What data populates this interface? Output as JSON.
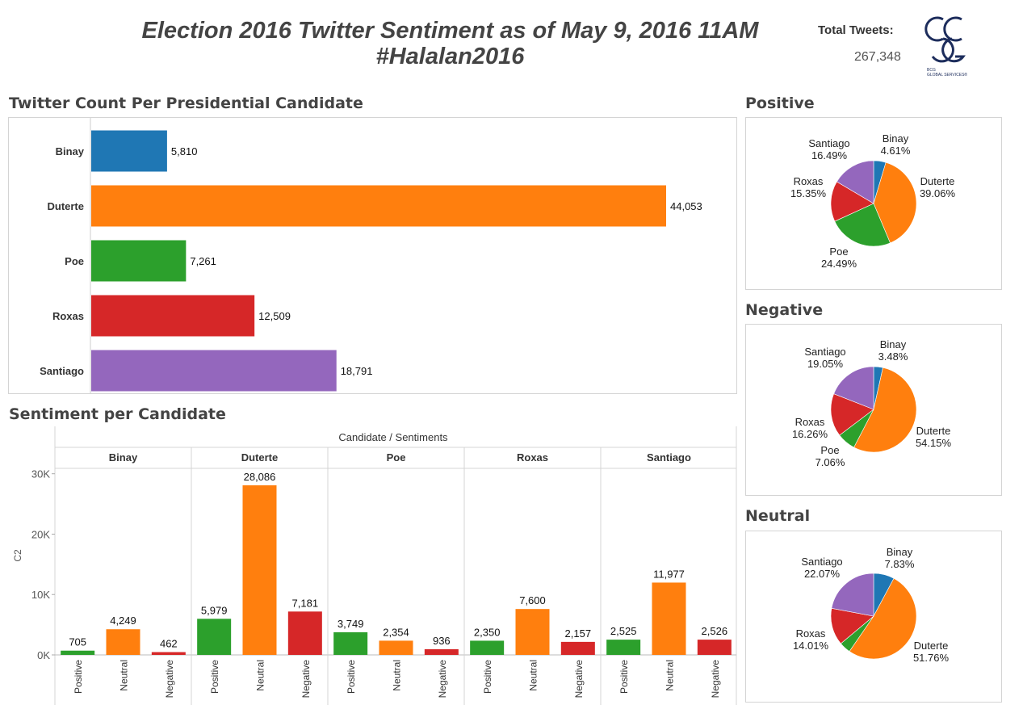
{
  "header": {
    "title_line1": "Election 2016 Twitter Sentiment as of May 9, 2016 11AM",
    "title_line2": "#Halalan2016",
    "total_tweets_label": "Total Tweets:",
    "total_tweets_value": "267,348",
    "logo_text": "BCG GLOBAL SERVICES®"
  },
  "colors": {
    "Binay": "#1f77b4",
    "Duterte": "#ff7f0e",
    "Poe": "#2ca02c",
    "Roxas": "#d62728",
    "Santiago": "#9467bd",
    "Positive": "#2ca02c",
    "Neutral": "#ff7f0e",
    "Negative": "#d62728"
  },
  "chart_data": [
    {
      "type": "bar",
      "orientation": "horizontal",
      "title": "Twitter Count Per Presidential Candidate",
      "categories": [
        "Binay",
        "Duterte",
        "Poe",
        "Roxas",
        "Santiago"
      ],
      "values": [
        5810,
        44053,
        7261,
        12509,
        18791
      ],
      "data_labels": [
        "5,810",
        "44,053",
        "7,261",
        "12,509",
        "18,791"
      ],
      "xlim": [
        0,
        55000
      ]
    },
    {
      "type": "bar",
      "title": "Sentiment per Candidate",
      "header": "Candidate / Sentiments",
      "ylabel": "C2",
      "ylim": [
        0,
        32000
      ],
      "yticks": [
        0,
        10000,
        20000,
        30000
      ],
      "ytick_labels": [
        "0K",
        "10K",
        "20K",
        "30K"
      ],
      "sentiments": [
        "Positive",
        "Neutral",
        "Negative"
      ],
      "groups": [
        {
          "name": "Binay",
          "values": [
            705,
            4249,
            462
          ],
          "labels": [
            "705",
            "4,249",
            "462"
          ]
        },
        {
          "name": "Duterte",
          "values": [
            5979,
            28086,
            7181
          ],
          "labels": [
            "5,979",
            "28,086",
            "7,181"
          ]
        },
        {
          "name": "Poe",
          "values": [
            3749,
            2354,
            936
          ],
          "labels": [
            "3,749",
            "2,354",
            "936"
          ]
        },
        {
          "name": "Roxas",
          "values": [
            2350,
            7600,
            2157
          ],
          "labels": [
            "2,350",
            "7,600",
            "2,157"
          ]
        },
        {
          "name": "Santiago",
          "values": [
            2525,
            11977,
            2526
          ],
          "labels": [
            "2,525",
            "11,977",
            "2,526"
          ]
        }
      ]
    },
    {
      "type": "pie",
      "title": "Positive",
      "categories": [
        "Binay",
        "Duterte",
        "Poe",
        "Roxas",
        "Santiago"
      ],
      "values": [
        4.61,
        39.06,
        24.49,
        15.35,
        16.49
      ],
      "labels": [
        "4.61%",
        "39.06%",
        "24.49%",
        "15.35%",
        "16.49%"
      ]
    },
    {
      "type": "pie",
      "title": "Negative",
      "categories": [
        "Binay",
        "Duterte",
        "Poe",
        "Roxas",
        "Santiago"
      ],
      "values": [
        3.48,
        54.15,
        7.06,
        16.26,
        19.05
      ],
      "labels": [
        "3.48%",
        "54.15%",
        "7.06%",
        "16.26%",
        "19.05%"
      ]
    },
    {
      "type": "pie",
      "title": "Neutral",
      "categories": [
        "Binay",
        "Duterte",
        "Poe",
        "Roxas",
        "Santiago"
      ],
      "values": [
        7.83,
        51.76,
        4.33,
        14.01,
        22.07
      ],
      "labels": [
        "7.83%",
        "51.76%",
        "",
        "14.01%",
        "22.07%"
      ]
    }
  ]
}
